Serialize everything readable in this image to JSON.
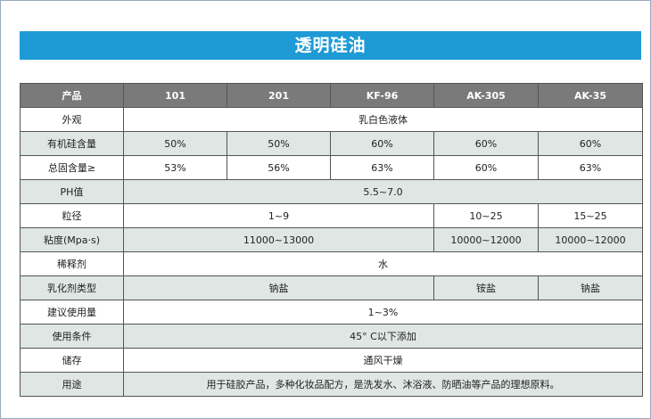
{
  "title": "透明硅油",
  "columns": [
    "产品",
    "101",
    "201",
    "KF-96",
    "AK-305",
    "AK-35"
  ],
  "rows": {
    "appearance": {
      "label": "外观",
      "value": "乳白色液体"
    },
    "silicone": {
      "label": "有机硅含量",
      "values": [
        "50%",
        "50%",
        "60%",
        "60%",
        "60%"
      ]
    },
    "solids": {
      "label": "总固含量≥",
      "values": [
        "53%",
        "56%",
        "63%",
        "60%",
        "63%"
      ]
    },
    "ph": {
      "label": "PH值",
      "value": "5.5~7.0"
    },
    "particle": {
      "label": "粒径",
      "group_a": "1~9",
      "ak305": "10~25",
      "ak35": "15~25"
    },
    "viscosity": {
      "label": "粘度(Mpa·s)",
      "group_a": "11000~13000",
      "ak305": "10000~12000",
      "ak35": "10000~12000"
    },
    "diluent": {
      "label": "稀释剂",
      "value": "水"
    },
    "emulsifier": {
      "label": "乳化剂类型",
      "group_a": "钠盐",
      "ak305": "铵盐",
      "ak35": "钠盐"
    },
    "dosage": {
      "label": "建议使用量",
      "value": "1~3%"
    },
    "conditions": {
      "label": "使用条件",
      "value": "45° C以下添加"
    },
    "storage": {
      "label": "储存",
      "value": "通风干燥"
    },
    "usage": {
      "label": "用途",
      "value": "用于硅胶产品，多种化妆品配方，是洗发水、沐浴液、防晒油等产品的理想原料。"
    }
  }
}
